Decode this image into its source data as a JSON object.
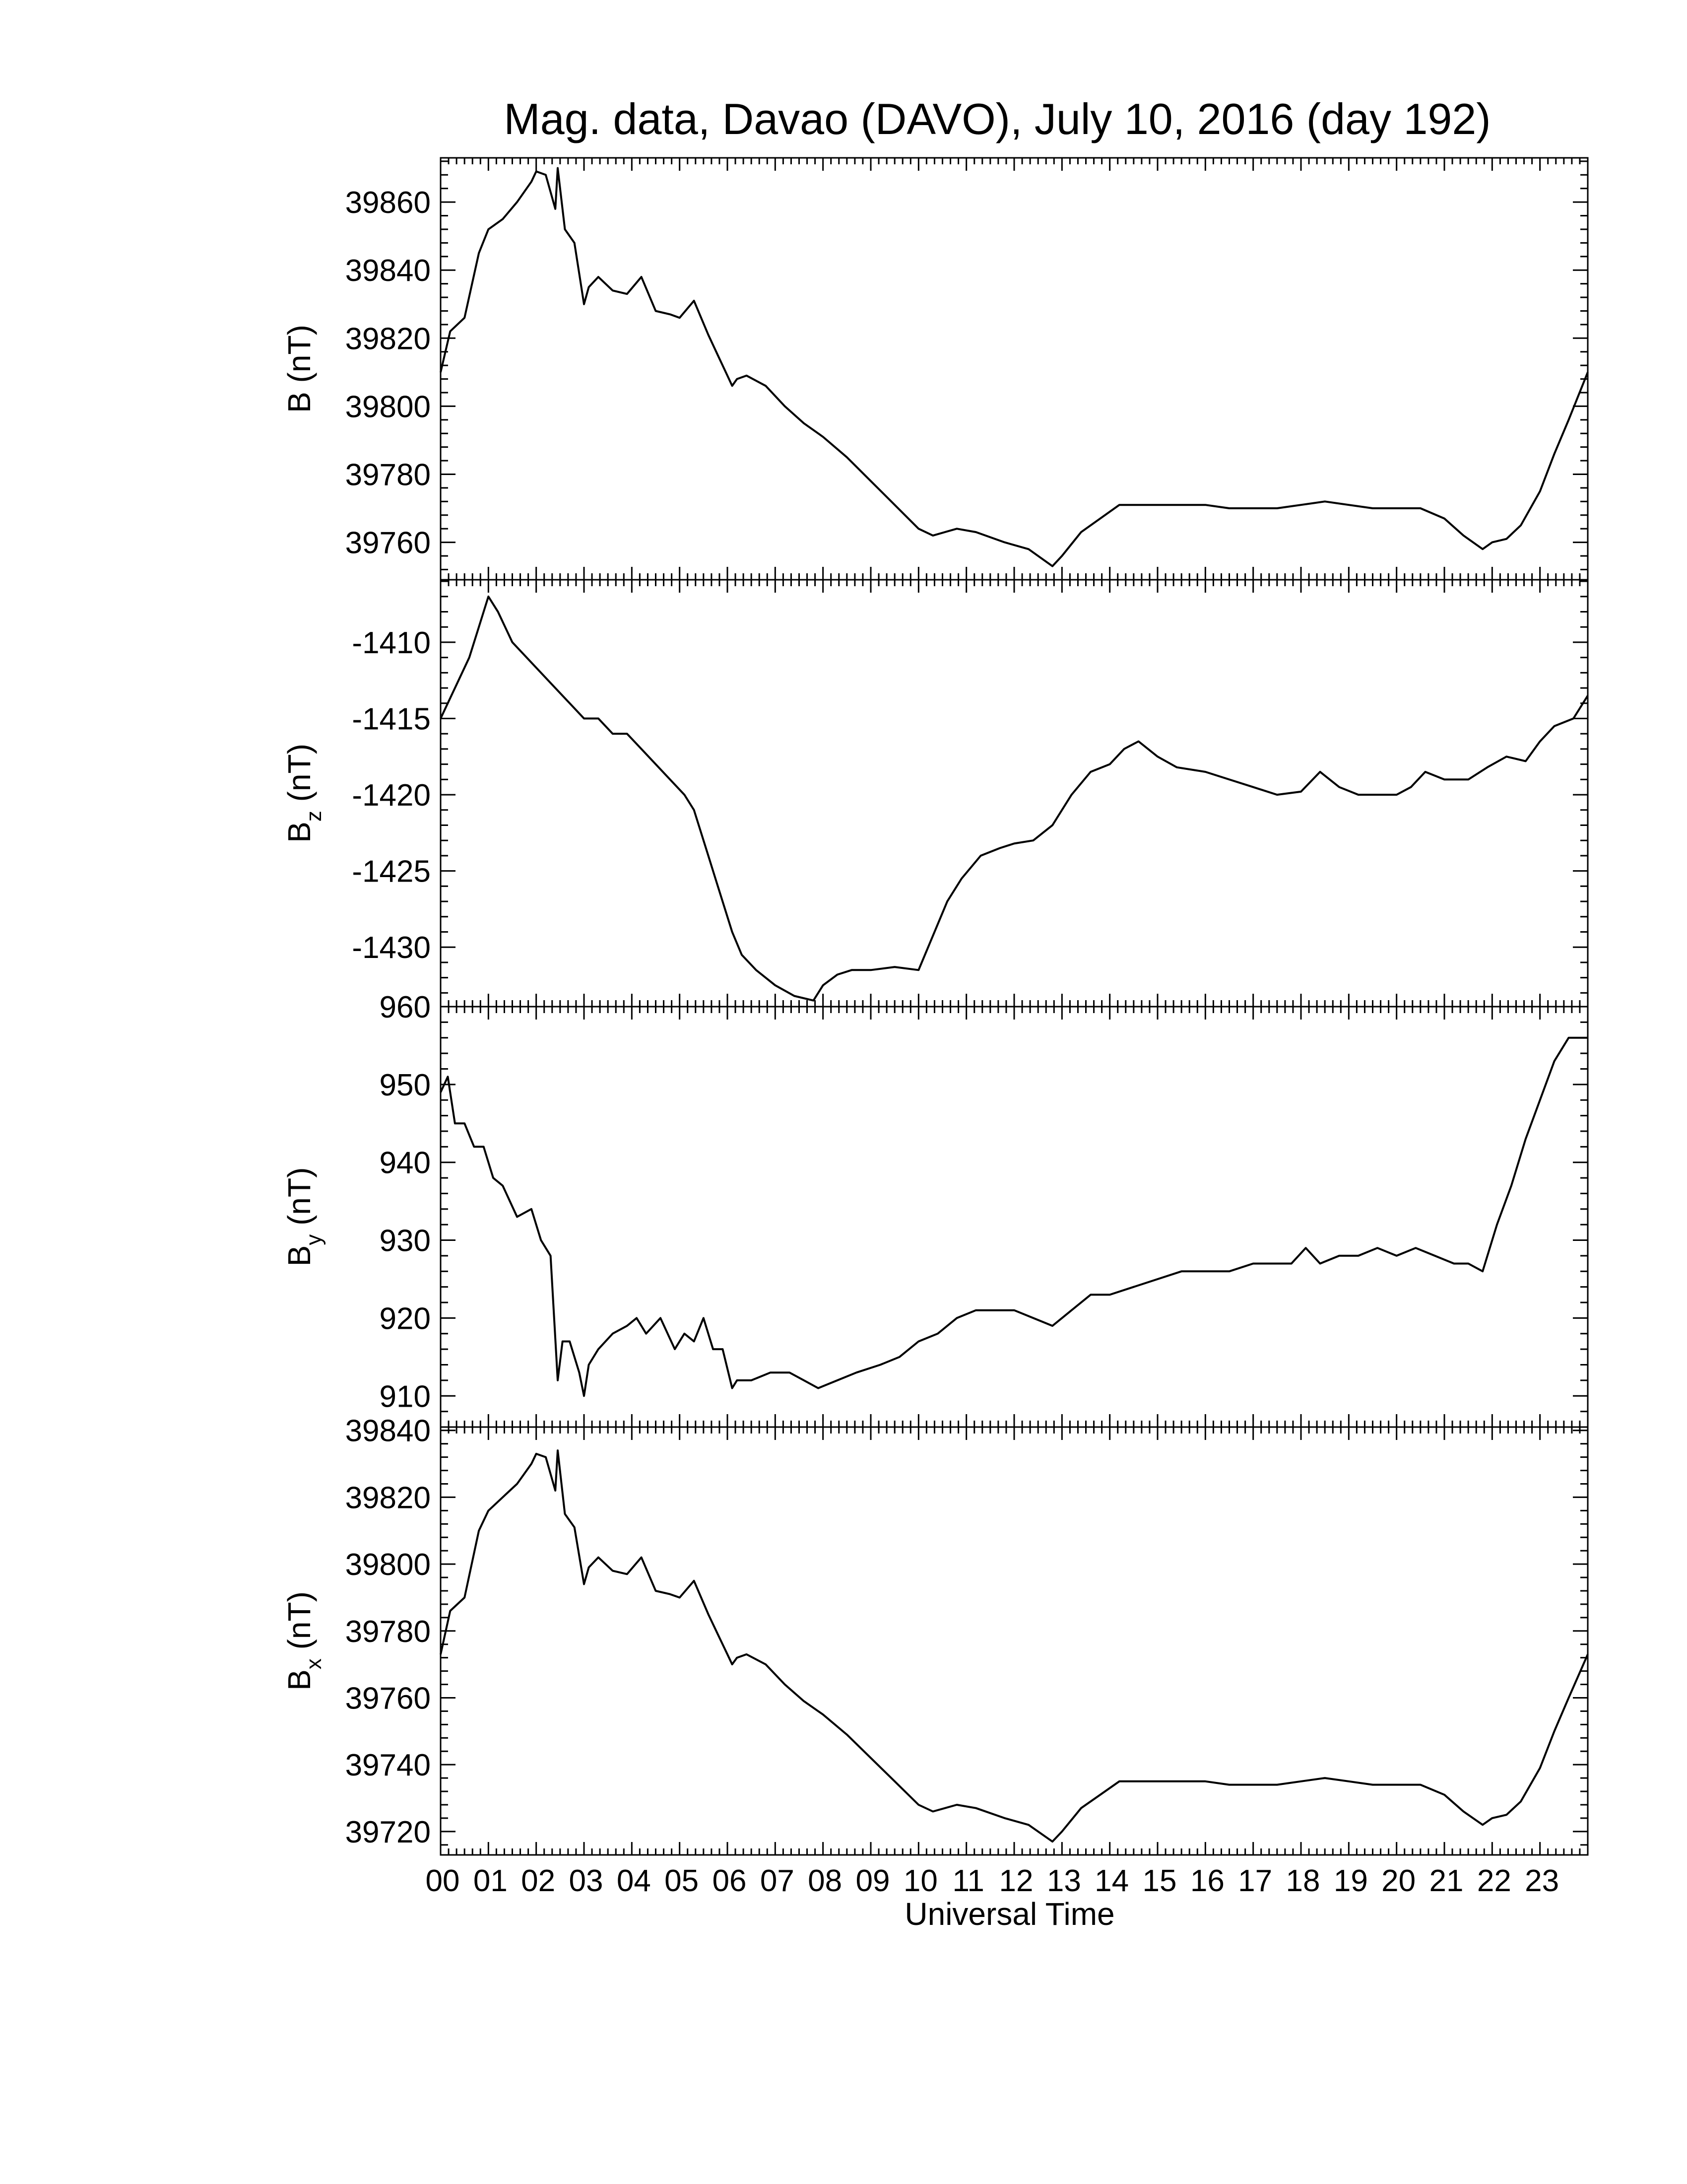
{
  "title": "Mag. data, Davao (DAVO), July 10, 2016 (day 192)",
  "xlabel": "Universal Time",
  "x_tick_labels": [
    "00",
    "01",
    "02",
    "03",
    "04",
    "05",
    "06",
    "07",
    "08",
    "09",
    "10",
    "11",
    "12",
    "13",
    "14",
    "15",
    "16",
    "17",
    "18",
    "19",
    "20",
    "21",
    "22",
    "23"
  ],
  "chart_data": [
    {
      "type": "line",
      "ylabel": "B",
      "ylabel_sub": "",
      "ylabel_unit": "(nT)",
      "ylim": [
        39749,
        39873
      ],
      "yticks": [
        39760,
        39780,
        39800,
        39820,
        39840,
        39860
      ],
      "xlim": [
        0,
        24
      ],
      "x": [
        0,
        0.2,
        0.5,
        0.8,
        1.0,
        1.3,
        1.6,
        1.9,
        2.0,
        2.2,
        2.4,
        2.45,
        2.6,
        2.8,
        3.0,
        3.1,
        3.3,
        3.6,
        3.9,
        4.2,
        4.5,
        4.8,
        5.0,
        5.3,
        5.6,
        5.8,
        6.0,
        6.1,
        6.2,
        6.4,
        6.8,
        7.2,
        7.6,
        8.0,
        8.5,
        9.0,
        9.5,
        10.0,
        10.3,
        10.8,
        11.2,
        11.8,
        12.3,
        12.8,
        13.0,
        13.4,
        13.8,
        14.2,
        14.6,
        15.0,
        15.5,
        16.0,
        16.5,
        17.0,
        17.5,
        18.0,
        18.5,
        19.0,
        19.5,
        20.0,
        20.5,
        21.0,
        21.4,
        21.8,
        22.0,
        22.3,
        22.6,
        23.0,
        23.3,
        23.6,
        24.0
      ],
      "y": [
        39810,
        39822,
        39826,
        39845,
        39852,
        39855,
        39860,
        39866,
        39869,
        39868,
        39858,
        39870,
        39852,
        39848,
        39830,
        39835,
        39838,
        39834,
        39833,
        39838,
        39828,
        39827,
        39826,
        39831,
        39821,
        39815,
        39809,
        39806,
        39808,
        39809,
        39806,
        39800,
        39795,
        39791,
        39785,
        39778,
        39771,
        39764,
        39762,
        39764,
        39763,
        39760,
        39758,
        39753,
        39756,
        39763,
        39767,
        39771,
        39771,
        39771,
        39771,
        39771,
        39770,
        39770,
        39770,
        39771,
        39772,
        39771,
        39770,
        39770,
        39770,
        39767,
        39762,
        39758,
        39760,
        39761,
        39765,
        39775,
        39786,
        39796,
        39810
      ]
    },
    {
      "type": "line",
      "ylabel": "B",
      "ylabel_sub": "z",
      "ylabel_unit": "(nT)",
      "ylim": [
        -1433.9,
        -1405.9
      ],
      "yticks": [
        -1410,
        -1415,
        -1420,
        -1425,
        -1430
      ],
      "xlim": [
        0,
        24
      ],
      "x": [
        0,
        0.3,
        0.6,
        0.8,
        1.0,
        1.2,
        1.5,
        1.8,
        2.1,
        2.4,
        2.7,
        3.0,
        3.3,
        3.6,
        3.9,
        4.2,
        4.5,
        4.8,
        5.1,
        5.3,
        5.6,
        5.8,
        6.1,
        6.3,
        6.6,
        7.0,
        7.4,
        7.8,
        8.0,
        8.3,
        8.6,
        9.0,
        9.5,
        10.0,
        10.2,
        10.6,
        10.9,
        11.3,
        11.7,
        12.0,
        12.4,
        12.8,
        13.2,
        13.6,
        14.0,
        14.3,
        14.6,
        15.0,
        15.4,
        16.0,
        16.5,
        17.0,
        17.5,
        18.0,
        18.4,
        18.8,
        19.2,
        19.6,
        20.0,
        20.3,
        20.6,
        21.0,
        21.5,
        21.9,
        22.3,
        22.7,
        23.0,
        23.3,
        23.7,
        24.0
      ],
      "y": [
        -1415,
        -1413,
        -1411,
        -1409,
        -1407,
        -1408,
        -1410,
        -1411,
        -1412,
        -1413,
        -1414,
        -1415,
        -1415,
        -1416,
        -1416,
        -1417,
        -1418,
        -1419,
        -1420,
        -1421,
        -1424,
        -1426,
        -1429,
        -1430.5,
        -1431.5,
        -1432.5,
        -1433.2,
        -1433.5,
        -1432.5,
        -1431.8,
        -1431.5,
        -1431.5,
        -1431.3,
        -1431.5,
        -1430,
        -1427,
        -1425.5,
        -1424,
        -1423.5,
        -1423.2,
        -1423,
        -1422,
        -1420,
        -1418.5,
        -1418,
        -1417,
        -1416.5,
        -1417.5,
        -1418.2,
        -1418.5,
        -1419,
        -1419.5,
        -1420,
        -1419.8,
        -1418.5,
        -1419.5,
        -1420,
        -1420,
        -1420,
        -1419.5,
        -1418.5,
        -1419,
        -1419,
        -1418.2,
        -1417.5,
        -1417.8,
        -1416.5,
        -1415.5,
        -1415,
        -1413.5
      ]
    },
    {
      "type": "line",
      "ylabel": "B",
      "ylabel_sub": "y",
      "ylabel_unit": "(nT)",
      "ylim": [
        906,
        960
      ],
      "yticks": [
        910,
        920,
        930,
        940,
        950,
        960
      ],
      "xlim": [
        0,
        24
      ],
      "x": [
        0,
        0.15,
        0.3,
        0.5,
        0.7,
        0.9,
        1.1,
        1.3,
        1.6,
        1.9,
        2.1,
        2.3,
        2.45,
        2.55,
        2.7,
        2.9,
        3.0,
        3.1,
        3.3,
        3.6,
        3.9,
        4.1,
        4.3,
        4.6,
        4.9,
        5.1,
        5.3,
        5.5,
        5.7,
        5.9,
        6.1,
        6.2,
        6.5,
        6.9,
        7.3,
        7.6,
        7.9,
        8.3,
        8.7,
        9.2,
        9.6,
        10.0,
        10.4,
        10.8,
        11.2,
        11.6,
        12.0,
        12.4,
        12.8,
        13.2,
        13.6,
        14.0,
        14.5,
        15.0,
        15.5,
        16.0,
        16.5,
        17.0,
        17.5,
        17.8,
        18.1,
        18.4,
        18.8,
        19.2,
        19.6,
        20.0,
        20.4,
        20.8,
        21.2,
        21.5,
        21.8,
        22.1,
        22.4,
        22.7,
        23.0,
        23.3,
        23.6,
        24.0
      ],
      "y": [
        949,
        951,
        945,
        945,
        942,
        942,
        938,
        937,
        933,
        934,
        930,
        928,
        912,
        917,
        917,
        913,
        910,
        914,
        916,
        918,
        919,
        920,
        918,
        920,
        916,
        918,
        917,
        920,
        916,
        916,
        911,
        912,
        912,
        913,
        913,
        912,
        911,
        912,
        913,
        914,
        915,
        917,
        918,
        920,
        921,
        921,
        921,
        920,
        919,
        921,
        923,
        923,
        924,
        925,
        926,
        926,
        926,
        927,
        927,
        927,
        929,
        927,
        928,
        928,
        929,
        928,
        929,
        928,
        927,
        927,
        926,
        932,
        937,
        943,
        948,
        953,
        956,
        956
      ]
    },
    {
      "type": "line",
      "ylabel": "B",
      "ylabel_sub": "x",
      "ylabel_unit": "(nT)",
      "ylim": [
        39713,
        39841
      ],
      "yticks": [
        39720,
        39740,
        39760,
        39780,
        39800,
        39820,
        39840
      ],
      "xlim": [
        0,
        24
      ],
      "x": [
        0,
        0.2,
        0.5,
        0.8,
        1.0,
        1.3,
        1.6,
        1.9,
        2.0,
        2.2,
        2.4,
        2.45,
        2.6,
        2.8,
        3.0,
        3.1,
        3.3,
        3.6,
        3.9,
        4.2,
        4.5,
        4.8,
        5.0,
        5.3,
        5.6,
        5.8,
        6.0,
        6.1,
        6.2,
        6.4,
        6.8,
        7.2,
        7.6,
        8.0,
        8.5,
        9.0,
        9.5,
        10.0,
        10.3,
        10.8,
        11.2,
        11.8,
        12.3,
        12.8,
        13.0,
        13.4,
        13.8,
        14.2,
        14.6,
        15.0,
        15.5,
        16.0,
        16.5,
        17.0,
        17.5,
        18.0,
        18.5,
        19.0,
        19.5,
        20.0,
        20.5,
        21.0,
        21.4,
        21.8,
        22.0,
        22.3,
        22.6,
        23.0,
        23.3,
        23.6,
        24.0
      ],
      "y": [
        39773,
        39786,
        39790,
        39810,
        39816,
        39820,
        39824,
        39830,
        39833,
        39832,
        39822,
        39834,
        39815,
        39811,
        39794,
        39799,
        39802,
        39798,
        39797,
        39802,
        39792,
        39791,
        39790,
        39795,
        39785,
        39779,
        39773,
        39770,
        39772,
        39773,
        39770,
        39764,
        39759,
        39755,
        39749,
        39742,
        39735,
        39728,
        39726,
        39728,
        39727,
        39724,
        39722,
        39717,
        39720,
        39727,
        39731,
        39735,
        39735,
        39735,
        39735,
        39735,
        39734,
        39734,
        39734,
        39735,
        39736,
        39735,
        39734,
        39734,
        39734,
        39731,
        39726,
        39722,
        39724,
        39725,
        39729,
        39739,
        39750,
        39760,
        39773
      ]
    }
  ]
}
